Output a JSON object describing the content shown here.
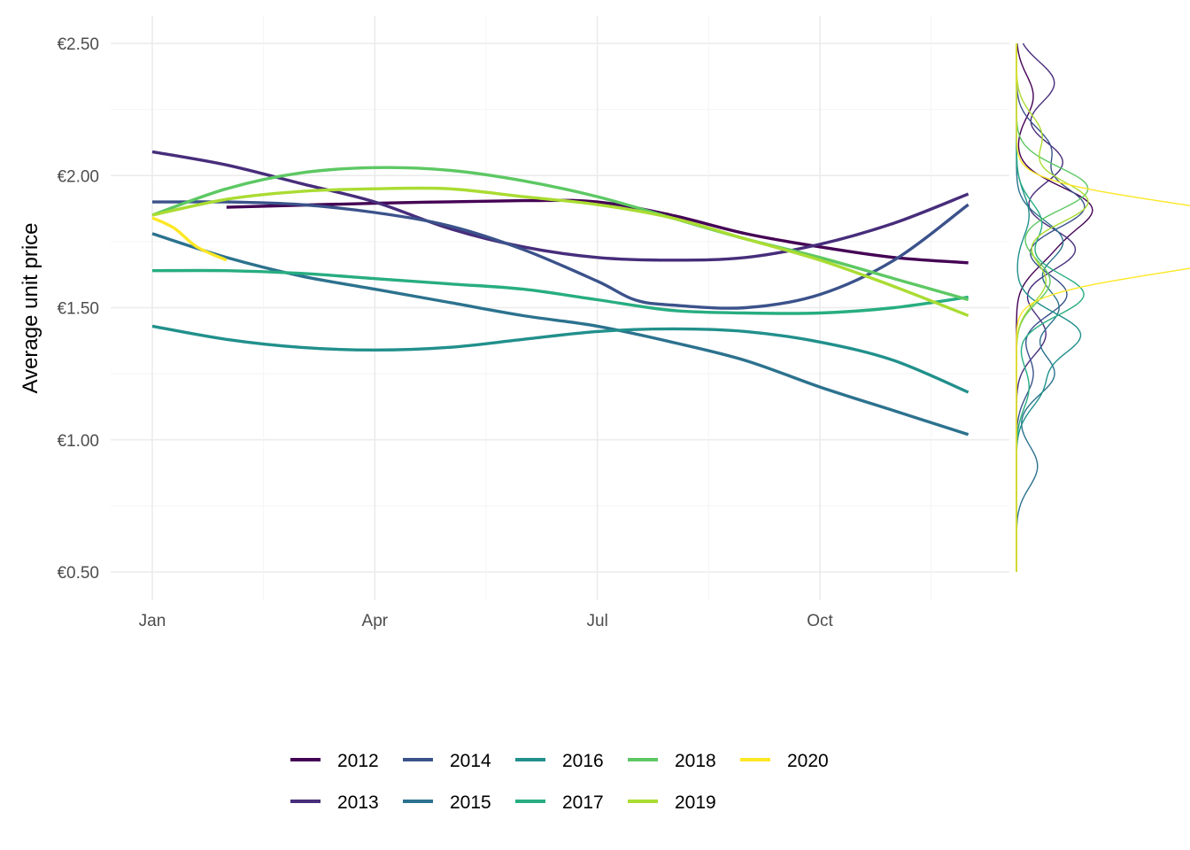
{
  "chart_data": [
    {
      "type": "line",
      "ylabel": "Average unit price",
      "xlabel": "",
      "x_ticks": [
        {
          "label": "Jan",
          "month": 1
        },
        {
          "label": "Apr",
          "month": 4
        },
        {
          "label": "Jul",
          "month": 7
        },
        {
          "label": "Oct",
          "month": 10
        }
      ],
      "y_ticks": [
        {
          "label": "€0.50",
          "value": 0.5
        },
        {
          "label": "€1.00",
          "value": 1.0
        },
        {
          "label": "€1.50",
          "value": 1.5
        },
        {
          "label": "€2.00",
          "value": 2.0
        },
        {
          "label": "€2.50",
          "value": 2.5
        }
      ],
      "xlim": [
        1,
        12
      ],
      "ylim": [
        0.5,
        2.5
      ],
      "grid": true,
      "legend_position": "bottom",
      "series": [
        {
          "name": "2012",
          "color": "#440154",
          "x": [
            2.0,
            4.0,
            6.0,
            7.0,
            8.0,
            9.0,
            10.0,
            11.0,
            12.0
          ],
          "y": [
            1.88,
            1.895,
            1.905,
            1.9,
            1.85,
            1.78,
            1.73,
            1.69,
            1.67
          ]
        },
        {
          "name": "2013",
          "color": "#472D7B",
          "x": [
            1.0,
            2.0,
            3.0,
            4.0,
            5.0,
            6.0,
            7.0,
            8.0,
            9.0,
            10.0,
            11.0,
            12.0
          ],
          "y": [
            2.09,
            2.04,
            1.97,
            1.9,
            1.8,
            1.73,
            1.69,
            1.68,
            1.69,
            1.74,
            1.82,
            1.93
          ]
        },
        {
          "name": "2014",
          "color": "#3B528B",
          "x": [
            1.0,
            2.0,
            3.0,
            4.0,
            5.0,
            6.0,
            7.0,
            7.5,
            8.0,
            9.0,
            10.0,
            11.0,
            12.0
          ],
          "y": [
            1.9,
            1.9,
            1.89,
            1.86,
            1.81,
            1.72,
            1.6,
            1.53,
            1.51,
            1.5,
            1.55,
            1.68,
            1.89
          ]
        },
        {
          "name": "2015",
          "color": "#2C728E",
          "x": [
            1.0,
            2.0,
            3.0,
            4.0,
            5.0,
            6.0,
            7.0,
            8.0,
            9.0,
            10.0,
            11.0,
            12.0
          ],
          "y": [
            1.78,
            1.69,
            1.62,
            1.57,
            1.52,
            1.47,
            1.43,
            1.37,
            1.3,
            1.2,
            1.11,
            1.02
          ]
        },
        {
          "name": "2016",
          "color": "#21908C",
          "x": [
            1.0,
            2.0,
            3.0,
            4.0,
            5.0,
            6.0,
            7.0,
            8.0,
            9.0,
            10.0,
            11.0,
            12.0
          ],
          "y": [
            1.43,
            1.38,
            1.35,
            1.34,
            1.35,
            1.38,
            1.41,
            1.42,
            1.41,
            1.37,
            1.3,
            1.18
          ]
        },
        {
          "name": "2017",
          "color": "#27AD81",
          "x": [
            1.0,
            2.0,
            3.0,
            4.0,
            5.0,
            6.0,
            7.0,
            8.0,
            9.0,
            10.0,
            11.0,
            12.0
          ],
          "y": [
            1.64,
            1.64,
            1.63,
            1.61,
            1.59,
            1.57,
            1.53,
            1.49,
            1.48,
            1.48,
            1.5,
            1.54
          ]
        },
        {
          "name": "2018",
          "color": "#5DC863",
          "x": [
            1.0,
            2.0,
            3.0,
            4.0,
            5.0,
            6.0,
            7.0,
            8.0,
            9.0,
            10.0,
            11.0,
            12.0
          ],
          "y": [
            1.85,
            1.95,
            2.01,
            2.03,
            2.02,
            1.98,
            1.92,
            1.84,
            1.76,
            1.69,
            1.61,
            1.53
          ]
        },
        {
          "name": "2019",
          "color": "#AADC32",
          "x": [
            1.0,
            2.0,
            3.0,
            4.0,
            5.0,
            6.0,
            7.0,
            8.0,
            9.0,
            10.0,
            11.0,
            12.0
          ],
          "y": [
            1.85,
            1.91,
            1.94,
            1.95,
            1.95,
            1.92,
            1.89,
            1.84,
            1.76,
            1.68,
            1.58,
            1.47
          ]
        },
        {
          "name": "2020",
          "color": "#FDE725",
          "x": [
            1.0,
            1.3,
            1.6,
            2.0
          ],
          "y": [
            1.84,
            1.8,
            1.73,
            1.68
          ]
        }
      ]
    },
    {
      "type": "density",
      "orientation": "horizontal",
      "note_axis": "shares y axis with the line chart",
      "series": [
        {
          "name": "2012",
          "color": "#440154",
          "peaks": [
            [
              1.88,
              0.85
            ],
            [
              1.72,
              0.35
            ],
            [
              2.3,
              0.2
            ]
          ]
        },
        {
          "name": "2013",
          "color": "#472D7B",
          "peaks": [
            [
              2.35,
              0.45
            ],
            [
              2.05,
              0.55
            ],
            [
              1.72,
              0.7
            ],
            [
              1.4,
              0.35
            ]
          ]
        },
        {
          "name": "2014",
          "color": "#3B528B",
          "peaks": [
            [
              2.1,
              0.4
            ],
            [
              1.88,
              0.8
            ],
            [
              1.55,
              0.6
            ],
            [
              1.25,
              0.2
            ]
          ]
        },
        {
          "name": "2015",
          "color": "#2C728E",
          "peaks": [
            [
              1.75,
              0.55
            ],
            [
              1.5,
              0.5
            ],
            [
              1.25,
              0.45
            ],
            [
              0.9,
              0.25
            ]
          ]
        },
        {
          "name": "2016",
          "color": "#21908C",
          "peaks": [
            [
              1.4,
              0.75
            ],
            [
              1.2,
              0.3
            ],
            [
              1.85,
              0.15
            ]
          ]
        },
        {
          "name": "2017",
          "color": "#27AD81",
          "peaks": [
            [
              1.55,
              0.8
            ],
            [
              1.82,
              0.3
            ],
            [
              1.2,
              0.15
            ]
          ]
        },
        {
          "name": "2018",
          "color": "#5DC863",
          "peaks": [
            [
              1.95,
              0.85
            ],
            [
              1.6,
              0.4
            ]
          ]
        },
        {
          "name": "2019",
          "color": "#AADC32",
          "peaks": [
            [
              1.9,
              0.85
            ],
            [
              1.6,
              0.35
            ],
            [
              2.15,
              0.3
            ]
          ]
        },
        {
          "name": "2020",
          "color": "#FDE725",
          "peaks": [
            [
              1.84,
              1.95
            ],
            [
              1.69,
              1.9
            ],
            [
              1.77,
              0.9
            ]
          ]
        }
      ]
    }
  ],
  "legend": {
    "items": [
      {
        "label": "2012",
        "color": "#440154"
      },
      {
        "label": "2013",
        "color": "#472D7B"
      },
      {
        "label": "2014",
        "color": "#3B528B"
      },
      {
        "label": "2015",
        "color": "#2C728E"
      },
      {
        "label": "2016",
        "color": "#21908C"
      },
      {
        "label": "2017",
        "color": "#27AD81"
      },
      {
        "label": "2018",
        "color": "#5DC863"
      },
      {
        "label": "2019",
        "color": "#AADC32"
      },
      {
        "label": "2020",
        "color": "#FDE725"
      }
    ]
  }
}
